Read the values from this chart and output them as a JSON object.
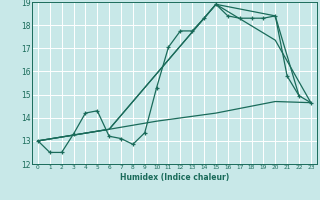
{
  "title": "",
  "xlabel": "Humidex (Indice chaleur)",
  "xlim": [
    -0.5,
    23.5
  ],
  "ylim": [
    12,
    19
  ],
  "yticks": [
    12,
    13,
    14,
    15,
    16,
    17,
    18,
    19
  ],
  "xticks": [
    0,
    1,
    2,
    3,
    4,
    5,
    6,
    7,
    8,
    9,
    10,
    11,
    12,
    13,
    14,
    15,
    16,
    17,
    18,
    19,
    20,
    21,
    22,
    23
  ],
  "bg_color": "#c8e8e8",
  "grid_color": "#ffffff",
  "line_color": "#1a6b5a",
  "lines": [
    {
      "x": [
        0,
        1,
        2,
        3,
        4,
        5,
        6,
        7,
        8,
        9,
        10,
        11,
        12,
        13,
        14,
        15,
        16,
        17,
        18,
        19,
        20,
        21,
        22,
        23
      ],
      "y": [
        13.0,
        12.5,
        12.5,
        13.3,
        14.2,
        14.3,
        13.2,
        13.1,
        12.85,
        13.35,
        15.3,
        17.05,
        17.75,
        17.75,
        18.3,
        18.9,
        18.4,
        18.3,
        18.3,
        18.3,
        18.4,
        15.8,
        14.95,
        14.65
      ],
      "marker": "+"
    },
    {
      "x": [
        0,
        6,
        15,
        20,
        22
      ],
      "y": [
        13.0,
        13.5,
        18.9,
        18.4,
        14.95
      ],
      "marker": null
    },
    {
      "x": [
        0,
        6,
        15,
        20,
        23
      ],
      "y": [
        13.0,
        13.5,
        18.9,
        17.35,
        14.65
      ],
      "marker": null
    },
    {
      "x": [
        0,
        6,
        10,
        15,
        20,
        23
      ],
      "y": [
        13.0,
        13.5,
        13.85,
        14.2,
        14.7,
        14.65
      ],
      "marker": null
    }
  ]
}
